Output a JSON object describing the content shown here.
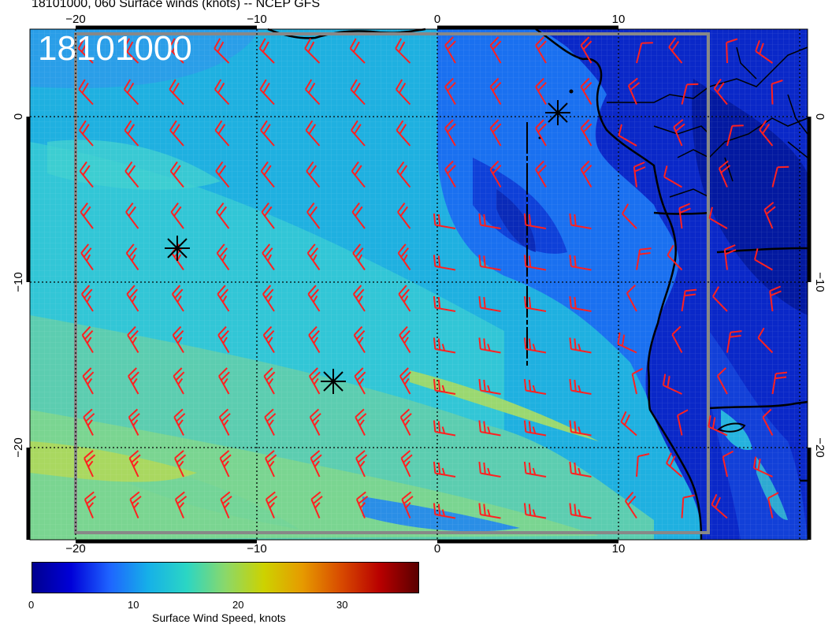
{
  "figure": {
    "title": "18101000, 060 Surface winds (knots) -- NCEP GFS",
    "stamp": "18101000"
  },
  "axes": {
    "lon_labels": [
      "−20",
      "−10",
      "0",
      "10"
    ],
    "lat_labels": [
      "0",
      "−10",
      "−20"
    ]
  },
  "colorbar": {
    "label": "Surface Wind Speed, knots",
    "ticks": [
      "0",
      "10",
      "20",
      "30"
    ],
    "range_knots": [
      0,
      38
    ],
    "colors": [
      "#00008f",
      "#0000d8",
      "#1e64ff",
      "#16b0e8",
      "#2bd6c4",
      "#8ad86a",
      "#cdd200",
      "#e69a00",
      "#d84a00",
      "#b80000",
      "#5a0000"
    ]
  },
  "map": {
    "region": "Tropical eastern Atlantic and south-west Africa",
    "lon_range": [
      -22.5,
      20
    ],
    "lat_range": [
      5,
      -25
    ],
    "graticule": "dotted black lines every 10 degrees",
    "barb_color": "#ff2020",
    "markers": "black asterisk storm markers"
  }
}
